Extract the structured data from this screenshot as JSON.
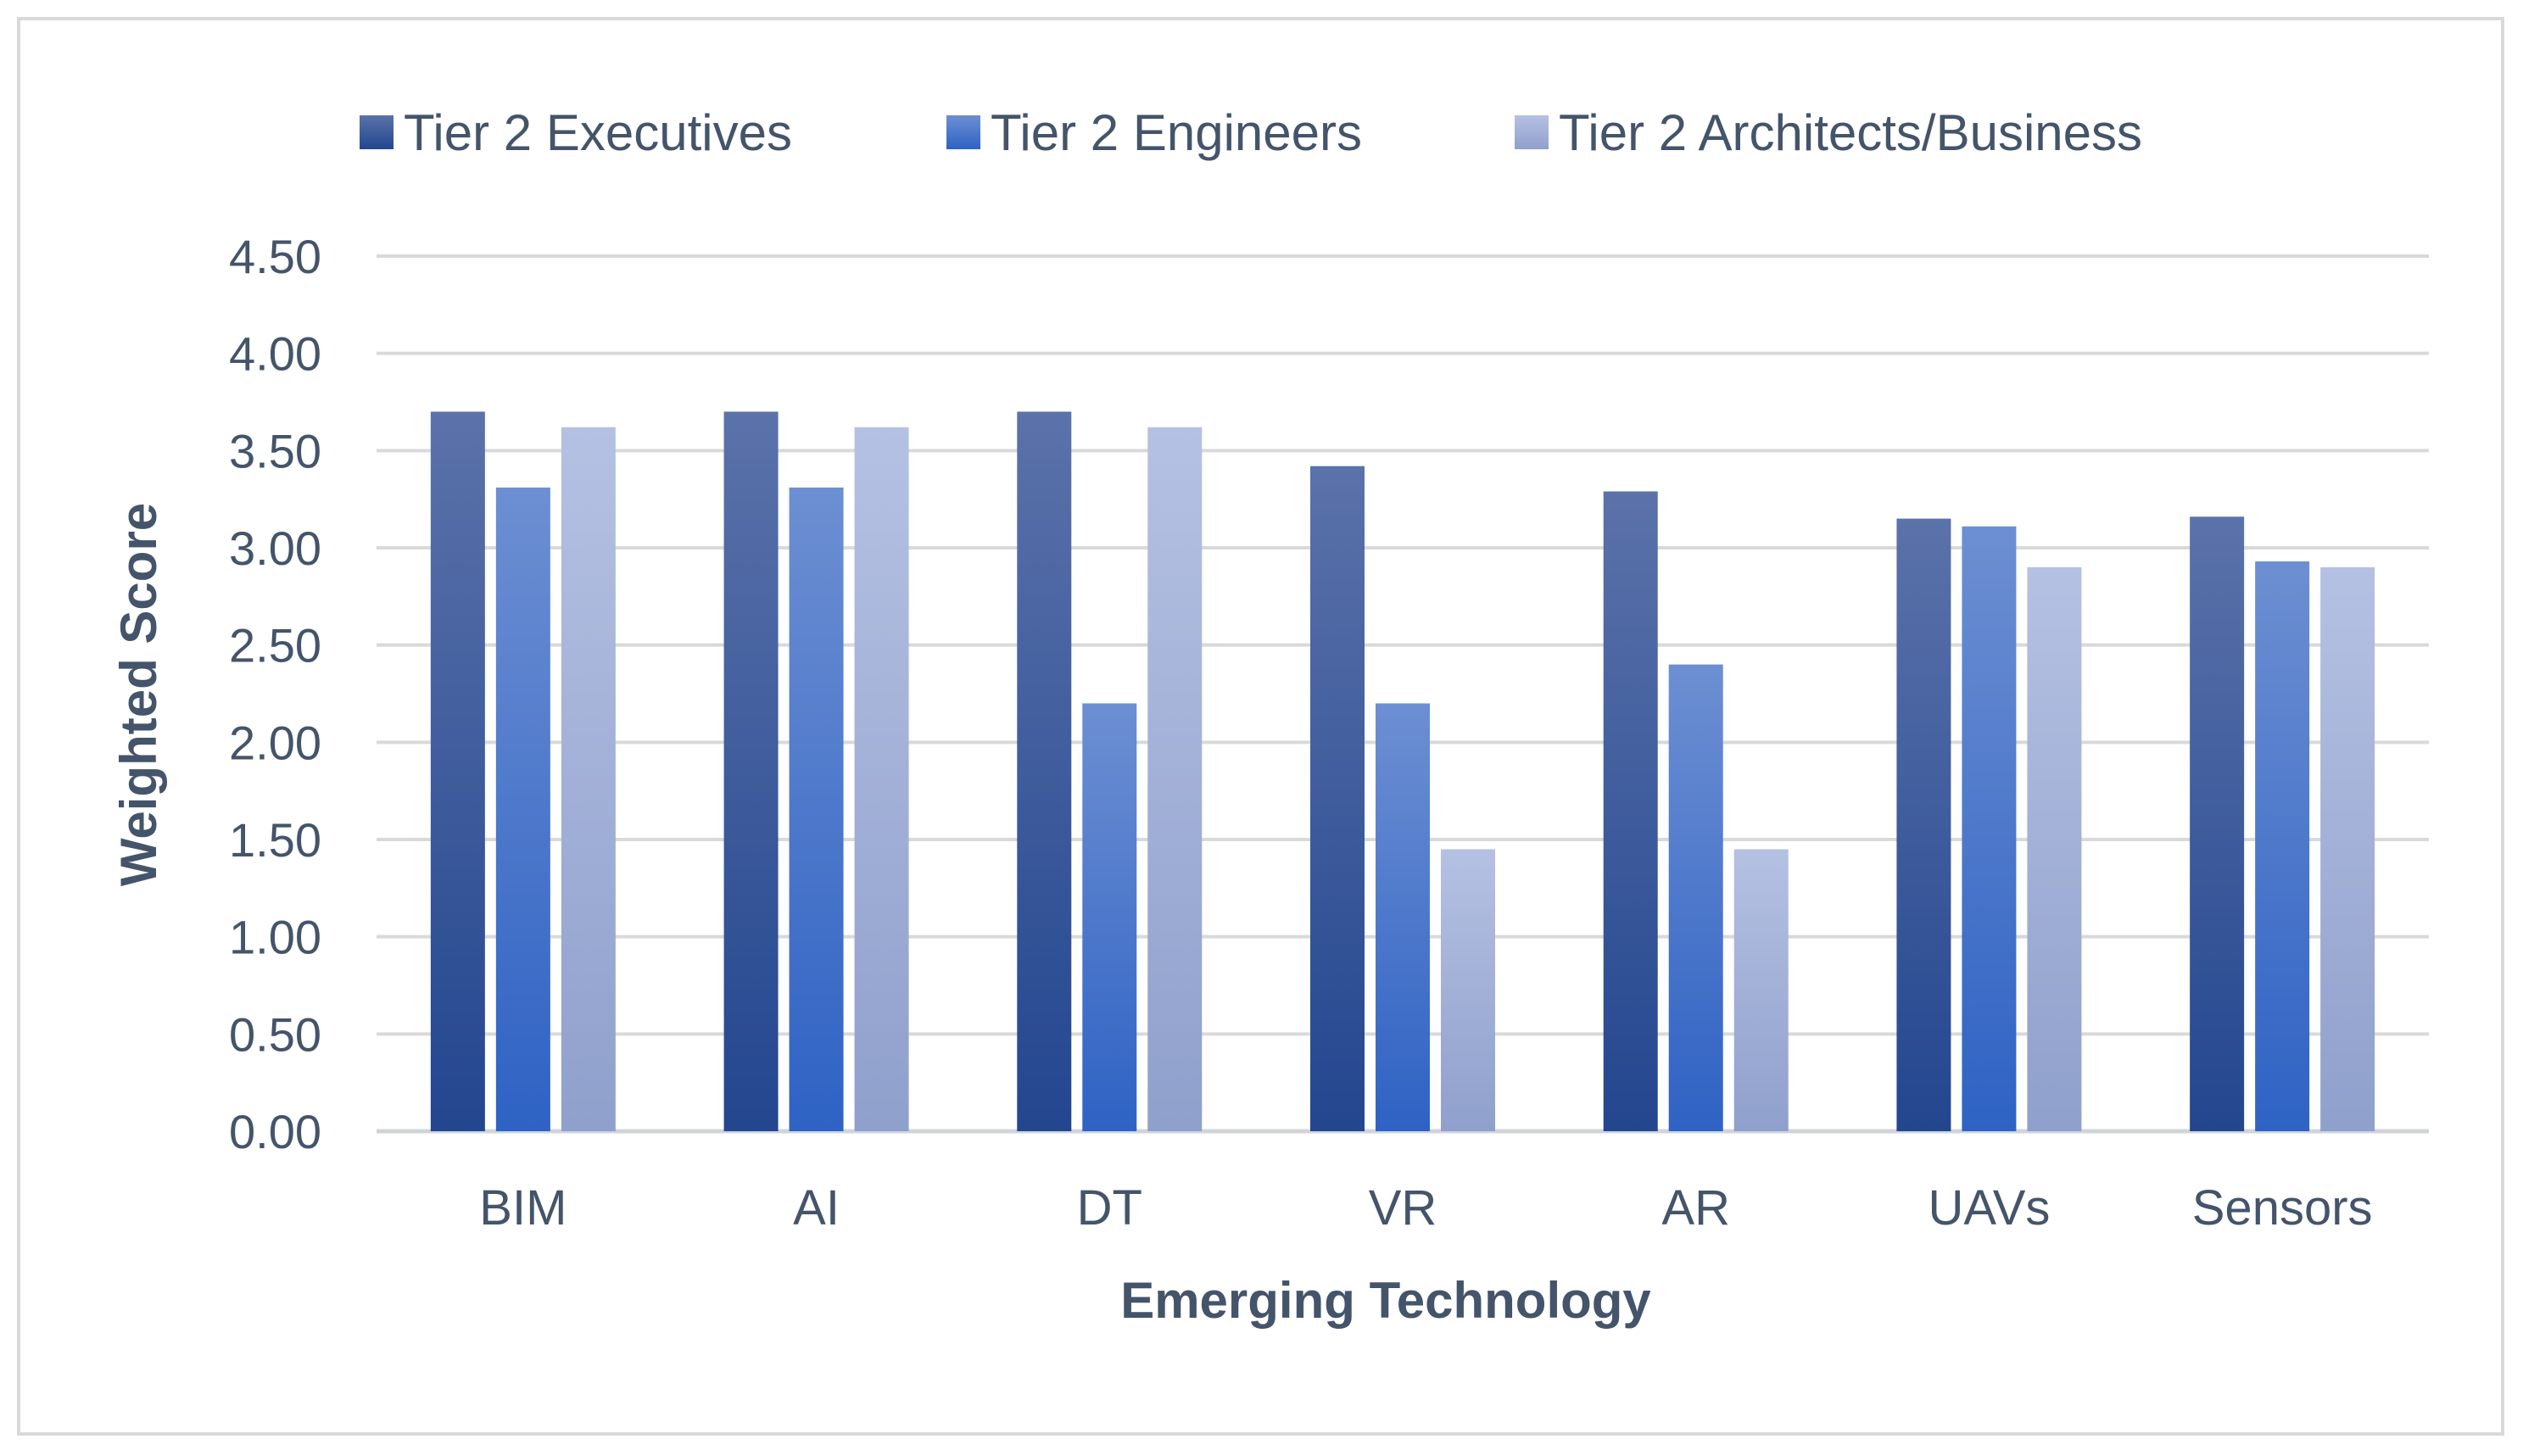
{
  "chart_data": {
    "type": "bar",
    "title": "",
    "xlabel": "Emerging Technology",
    "ylabel": "Weighted Score",
    "ylim": [
      0,
      4.5
    ],
    "ytick_step": 0.5,
    "ytick_labels": [
      "0.00",
      "0.50",
      "1.00",
      "1.50",
      "2.00",
      "2.50",
      "3.00",
      "3.50",
      "4.00",
      "4.50"
    ],
    "grid": true,
    "legend_position": "top",
    "categories": [
      "BIM",
      "AI",
      "DT",
      "VR",
      "AR",
      "UAVs",
      "Sensors"
    ],
    "series": [
      {
        "name": "Tier 2 Executives",
        "color_top": "#5b72aa",
        "color_bottom": "#23468f",
        "values": [
          3.7,
          3.7,
          3.7,
          3.42,
          3.29,
          3.15,
          3.16
        ]
      },
      {
        "name": "Tier 2 Engineers",
        "color_top": "#6d8fd2",
        "color_bottom": "#2e62c4",
        "values": [
          3.31,
          3.31,
          2.2,
          2.2,
          2.4,
          3.11,
          2.93
        ]
      },
      {
        "name": "Tier 2 Architects/Business",
        "color_top": "#b5c1e3",
        "color_bottom": "#8fa0cc",
        "values": [
          3.62,
          3.62,
          3.62,
          1.45,
          1.45,
          2.9,
          2.9
        ]
      }
    ]
  }
}
